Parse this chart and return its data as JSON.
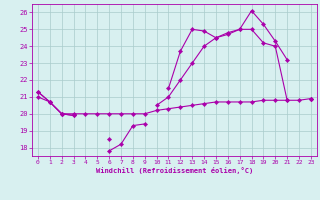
{
  "x": [
    0,
    1,
    2,
    3,
    4,
    5,
    6,
    7,
    8,
    9,
    10,
    11,
    12,
    13,
    14,
    15,
    16,
    17,
    18,
    19,
    20,
    21,
    22,
    23
  ],
  "line_zigzag": [
    21.3,
    20.7,
    20.0,
    19.9,
    null,
    null,
    17.8,
    18.2,
    19.3,
    19.4,
    null,
    21.5,
    23.7,
    25.0,
    24.9,
    24.5,
    24.7,
    25.0,
    26.1,
    25.3,
    24.3,
    23.2,
    null,
    20.9
  ],
  "line_smooth": [
    21.3,
    20.7,
    20.0,
    19.9,
    null,
    null,
    18.5,
    null,
    null,
    null,
    20.5,
    21.0,
    22.0,
    23.0,
    24.0,
    24.5,
    24.8,
    25.0,
    25.0,
    24.2,
    24.0,
    20.8,
    null,
    20.9
  ],
  "line_flat": [
    21.0,
    20.7,
    20.0,
    20.0,
    20.0,
    20.0,
    20.0,
    20.0,
    20.0,
    20.0,
    20.2,
    20.3,
    20.4,
    20.5,
    20.6,
    20.7,
    20.7,
    20.7,
    20.7,
    20.8,
    20.8,
    20.8,
    20.8,
    20.9
  ],
  "color": "#aa00aa",
  "bg_color": "#d8f0f0",
  "grid_color": "#aacccc",
  "xlabel": "Windchill (Refroidissement éolien,°C)",
  "ylim": [
    17.5,
    26.5
  ],
  "xlim": [
    -0.5,
    23.5
  ],
  "yticks": [
    18,
    19,
    20,
    21,
    22,
    23,
    24,
    25,
    26
  ],
  "xticks": [
    0,
    1,
    2,
    3,
    4,
    5,
    6,
    7,
    8,
    9,
    10,
    11,
    12,
    13,
    14,
    15,
    16,
    17,
    18,
    19,
    20,
    21,
    22,
    23
  ]
}
